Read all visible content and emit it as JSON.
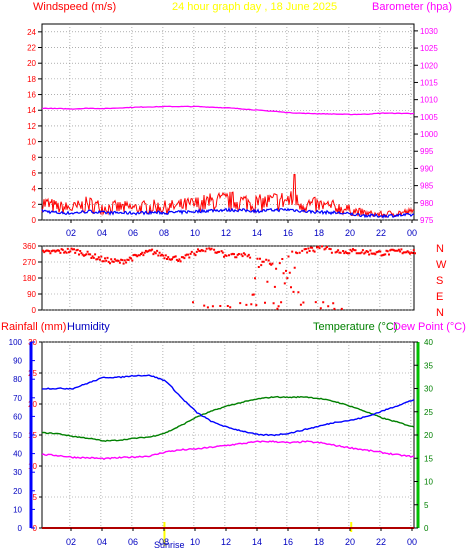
{
  "header": {
    "windspeed_label": "Windspeed (m/s)",
    "title": "24 hour graph day , 18 June 2025",
    "barometer_label": "Barometer (hpa)"
  },
  "colors": {
    "wind": "#ff0000",
    "windavg": "#0000ff",
    "baro": "#ff00ff",
    "title": "#ffff00",
    "rain": "#ff0000",
    "humidity": "#0000ff",
    "temperature": "#008000",
    "dewpoint": "#ff00ff",
    "grid": "#808080",
    "sun": "#ffff00"
  },
  "x_ticks": [
    "02",
    "04",
    "06",
    "08",
    "10",
    "12",
    "14",
    "16",
    "18",
    "20",
    "22",
    "00"
  ],
  "wind_y_ticks": [
    "0",
    "2",
    "4",
    "6",
    "8",
    "10",
    "12",
    "14",
    "16",
    "18",
    "20",
    "22",
    "24"
  ],
  "baro_y_ticks": [
    "975",
    "980",
    "985",
    "990",
    "995",
    "1000",
    "1005",
    "1010",
    "1015",
    "1020",
    "1025",
    "1030"
  ],
  "dir_y_ticks": [
    "0",
    "90",
    "180",
    "270",
    "360"
  ],
  "dir_labels": [
    "N",
    "W",
    "S",
    "E",
    "N"
  ],
  "rain_y_ticks": [
    "0",
    "5",
    "10",
    "15",
    "20",
    "25",
    "30"
  ],
  "hum_y_ticks": [
    "0",
    "10",
    "20",
    "30",
    "40",
    "50",
    "60",
    "70",
    "80",
    "90",
    "100"
  ],
  "temp_y_ticks": [
    "0",
    "5",
    "10",
    "15",
    "20",
    "25",
    "30",
    "35",
    "40"
  ],
  "bottom_header": {
    "rainfall_label": "Rainfall (mm)",
    "humidity_label": "Humidity",
    "temperature_label": "Temperature (°C)",
    "dewpoint_label": "Dew Point (°C)"
  },
  "sunrise_label": "Sunrise",
  "chart_data": [
    {
      "type": "line",
      "title": "24 hour graph day , 18 June 2025",
      "xlabel": "",
      "ylabel": "Windspeed (m/s)",
      "ylim": [
        0,
        25
      ],
      "x_hours": [
        0,
        1,
        2,
        3,
        4,
        5,
        6,
        7,
        8,
        9,
        10,
        11,
        12,
        13,
        14,
        15,
        16,
        17,
        18,
        19,
        20,
        21,
        22,
        23,
        24
      ],
      "series": [
        {
          "name": "Windspeed (m/s)",
          "values": [
            2.2,
            1.6,
            1.5,
            2.0,
            1.6,
            1.6,
            1.5,
            1.7,
            1.6,
            1.8,
            2.0,
            2.3,
            2.4,
            2.3,
            2.1,
            2.4,
            2.5,
            2.0,
            1.8,
            1.6,
            1.2,
            0.8,
            0.7,
            0.9,
            1.0
          ]
        },
        {
          "name": "Barometer (hpa)",
          "axis": "right",
          "ylim": [
            975,
            1032
          ],
          "values": [
            1007.5,
            1007.4,
            1007.3,
            1007.5,
            1007.4,
            1007.6,
            1007.8,
            1007.9,
            1008.0,
            1008.0,
            1008.0,
            1007.8,
            1007.6,
            1007.3,
            1006.9,
            1006.6,
            1006.2,
            1006.0,
            1005.9,
            1005.8,
            1005.7,
            1005.8,
            1006.1,
            1006.0,
            1006.0
          ]
        }
      ]
    },
    {
      "type": "scatter",
      "ylabel": "",
      "ylim": [
        0,
        360
      ],
      "x_hours": [
        0,
        1,
        2,
        3,
        4,
        5,
        6,
        7,
        8,
        9,
        10,
        11,
        12,
        13,
        14,
        15,
        16,
        17,
        18,
        19,
        20,
        21,
        22,
        23,
        24
      ],
      "series": [
        {
          "name": "Wind direction",
          "values": [
            320,
            330,
            335,
            310,
            280,
            270,
            300,
            330,
            300,
            285,
            330,
            340,
            300,
            310,
            290,
            250,
            320,
            335,
            345,
            330,
            330,
            325,
            320,
            330,
            330
          ]
        }
      ]
    },
    {
      "type": "line",
      "xlabel": "",
      "ylabel": "Rainfall (mm)",
      "x_hours": [
        0,
        1,
        2,
        3,
        4,
        5,
        6,
        7,
        8,
        9,
        10,
        11,
        12,
        13,
        14,
        15,
        16,
        17,
        18,
        19,
        20,
        21,
        22,
        23,
        24
      ],
      "series": [
        {
          "name": "Rainfall (mm)",
          "axis": "rain",
          "ylim": [
            0,
            30
          ],
          "values": [
            0,
            0,
            0,
            0,
            0,
            0,
            0,
            0,
            0,
            0,
            0,
            0,
            0,
            0,
            0,
            0,
            0,
            0,
            0,
            0,
            0,
            0,
            0,
            0,
            0
          ]
        },
        {
          "name": "Humidity",
          "axis": "humidity",
          "ylim": [
            0,
            100
          ],
          "values": [
            75,
            75,
            75,
            78,
            81,
            81,
            82,
            82,
            79,
            70,
            62,
            57,
            54,
            52,
            50,
            50,
            51,
            53,
            55,
            57,
            58,
            60,
            63,
            66,
            69
          ]
        },
        {
          "name": "Temperature (°C)",
          "axis": "temperature",
          "ylim": [
            0,
            40
          ],
          "values": [
            20.5,
            20.3,
            19.7,
            19.3,
            18.7,
            18.9,
            19.3,
            19.6,
            20.5,
            22.1,
            23.9,
            25.2,
            26.3,
            27.1,
            27.8,
            28.2,
            28.1,
            28.2,
            27.8,
            27.1,
            26.1,
            24.9,
            23.6,
            22.7,
            21.7
          ]
        },
        {
          "name": "Dew Point (°C)",
          "axis": "temperature",
          "ylim": [
            0,
            40
          ],
          "values": [
            15.8,
            15.6,
            15.2,
            15.1,
            14.9,
            15.1,
            15.3,
            15.5,
            16.4,
            16.8,
            17.0,
            17.4,
            17.8,
            18.2,
            18.6,
            18.6,
            18.3,
            18.6,
            18.3,
            17.7,
            17.2,
            16.7,
            16.2,
            15.7,
            15.3
          ]
        }
      ]
    }
  ]
}
